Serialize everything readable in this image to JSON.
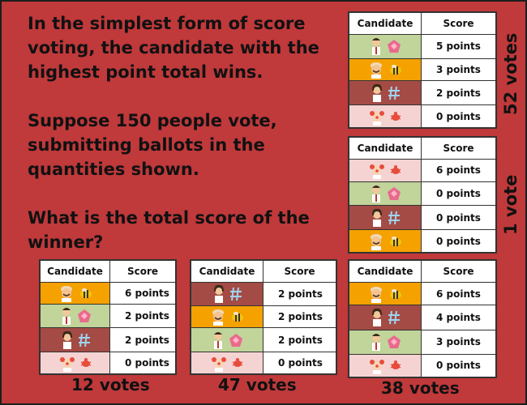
{
  "prompt": {
    "line1": "In the simplest form of score voting, the candidate with the highest point total wins.",
    "line2": "Suppose 150 people vote, submitting ballots in the quantities shown.",
    "line3": "What is the total score of the winner?"
  },
  "headers": {
    "candidate": "Candidate",
    "score": "Score"
  },
  "colors": {
    "background": "#c0393b",
    "orange": "#f5a100",
    "green": "#c1d49a",
    "brown": "#a44b45",
    "pink": "#f5d3d3"
  },
  "ballots": [
    {
      "id": "top-right",
      "caption": "52 votes",
      "rows": [
        {
          "candidate": "green-candidate",
          "icons": [
            "man-icon",
            "pink-shape-icon"
          ],
          "score": "5 points"
        },
        {
          "candidate": "orange-candidate",
          "icons": [
            "chef-icon",
            "bee-icon"
          ],
          "score": "3 points"
        },
        {
          "candidate": "brown-candidate",
          "icons": [
            "woman-icon",
            "hash-icon"
          ],
          "score": "2 points"
        },
        {
          "candidate": "pink-candidate",
          "icons": [
            "clown-icon",
            "bug-icon"
          ],
          "score": "0 points"
        }
      ]
    },
    {
      "id": "middle-right",
      "caption": "1 vote",
      "rows": [
        {
          "candidate": "pink-candidate",
          "icons": [
            "clown-icon",
            "bug-icon"
          ],
          "score": "6 points"
        },
        {
          "candidate": "green-candidate",
          "icons": [
            "man-icon",
            "pink-shape-icon"
          ],
          "score": "0 points"
        },
        {
          "candidate": "brown-candidate",
          "icons": [
            "woman-icon",
            "hash-icon"
          ],
          "score": "0 points"
        },
        {
          "candidate": "orange-candidate",
          "icons": [
            "chef-icon",
            "bee-icon"
          ],
          "score": "0 points"
        }
      ]
    },
    {
      "id": "bottom-left",
      "caption": "12 votes",
      "rows": [
        {
          "candidate": "orange-candidate",
          "icons": [
            "chef-icon",
            "bee-icon"
          ],
          "score": "6 points"
        },
        {
          "candidate": "green-candidate",
          "icons": [
            "man-icon",
            "pink-shape-icon"
          ],
          "score": "2 points"
        },
        {
          "candidate": "brown-candidate",
          "icons": [
            "woman-icon",
            "hash-icon"
          ],
          "score": "2 points"
        },
        {
          "candidate": "pink-candidate",
          "icons": [
            "clown-icon",
            "bug-icon"
          ],
          "score": "0 points"
        }
      ]
    },
    {
      "id": "bottom-middle",
      "caption": "47 votes",
      "rows": [
        {
          "candidate": "brown-candidate",
          "icons": [
            "woman-icon",
            "hash-icon"
          ],
          "score": "2 points"
        },
        {
          "candidate": "orange-candidate",
          "icons": [
            "chef-icon",
            "bee-icon"
          ],
          "score": "2 points"
        },
        {
          "candidate": "green-candidate",
          "icons": [
            "man-icon",
            "pink-shape-icon"
          ],
          "score": "2 points"
        },
        {
          "candidate": "pink-candidate",
          "icons": [
            "clown-icon",
            "bug-icon"
          ],
          "score": "0 points"
        }
      ]
    },
    {
      "id": "bottom-right",
      "caption": "38 votes",
      "rows": [
        {
          "candidate": "orange-candidate",
          "icons": [
            "chef-icon",
            "bee-icon"
          ],
          "score": "6 points"
        },
        {
          "candidate": "brown-candidate",
          "icons": [
            "woman-icon",
            "hash-icon"
          ],
          "score": "4 points"
        },
        {
          "candidate": "green-candidate",
          "icons": [
            "man-icon",
            "pink-shape-icon"
          ],
          "score": "3 points"
        },
        {
          "candidate": "pink-candidate",
          "icons": [
            "clown-icon",
            "bug-icon"
          ],
          "score": "0 points"
        }
      ]
    }
  ]
}
